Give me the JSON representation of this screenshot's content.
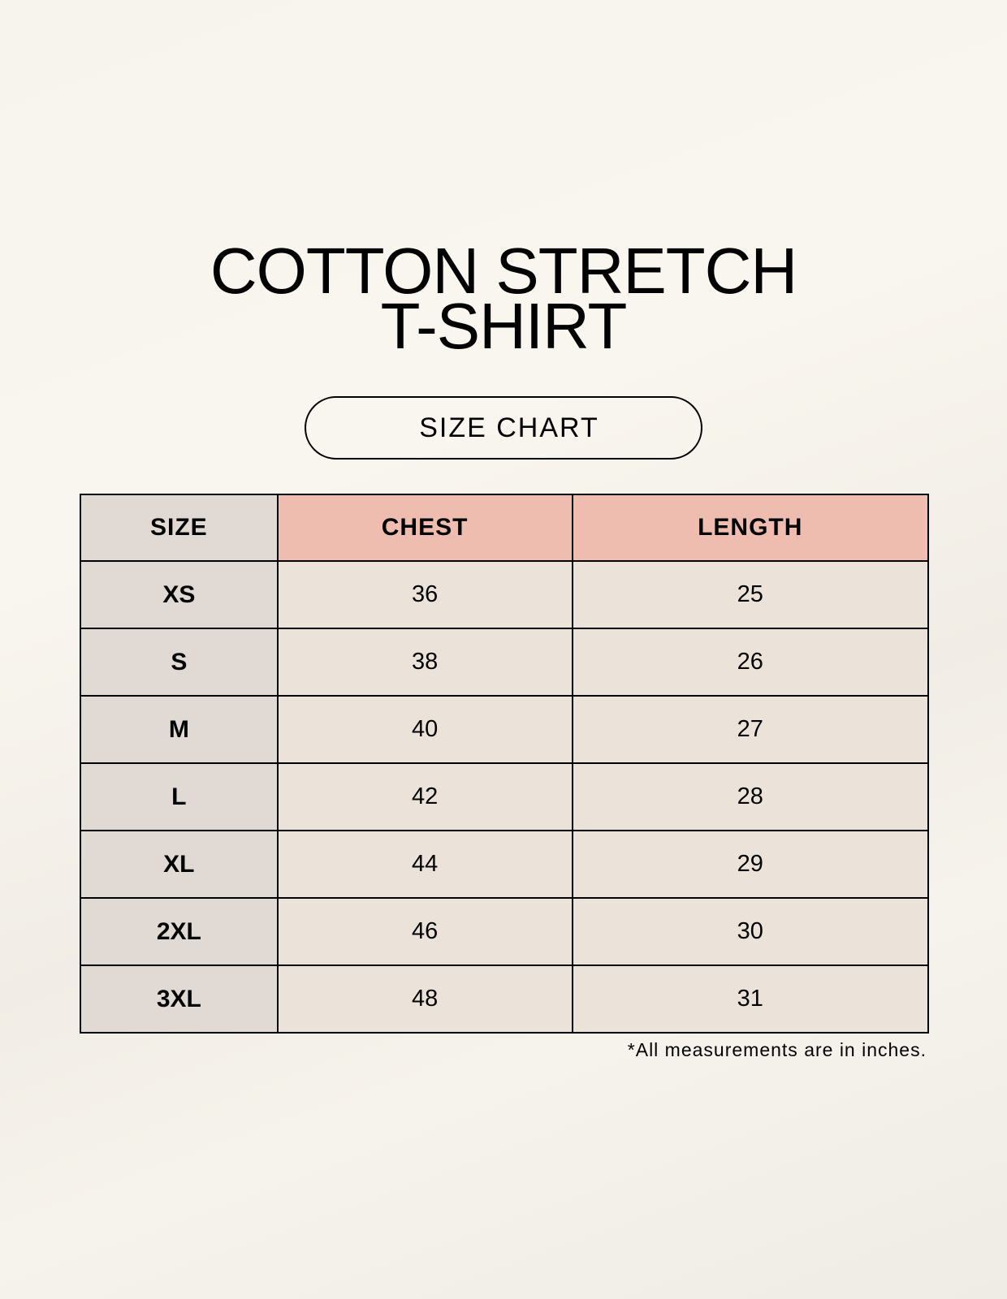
{
  "title_line1": "COTTON STRETCH",
  "title_line2": "T-SHIRT",
  "badge": "SIZE CHART",
  "headers": [
    "SIZE",
    "CHEST",
    "LENGTH"
  ],
  "rows": [
    [
      "XS",
      "36",
      "25"
    ],
    [
      "S",
      "38",
      "26"
    ],
    [
      "M",
      "40",
      "27"
    ],
    [
      "L",
      "42",
      "28"
    ],
    [
      "XL",
      "44",
      "29"
    ],
    [
      "2XL",
      "46",
      "30"
    ],
    [
      "3XL",
      "48",
      "31"
    ]
  ],
  "footnote": "*All measurements are in inches.",
  "colors": {
    "size_column": "#e1d9d3",
    "header_accent": "#eebdaf",
    "cell": "#ebe3d9"
  }
}
